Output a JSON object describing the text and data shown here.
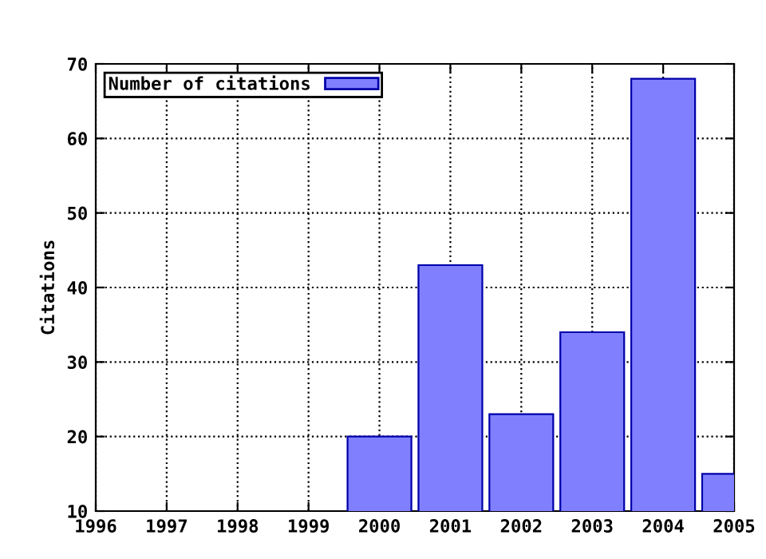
{
  "chart_data": {
    "type": "bar",
    "ylabel": "Citations",
    "x": [
      2000,
      2001,
      2002,
      2003,
      2004,
      2005
    ],
    "series": [
      {
        "name": "Number of citations",
        "color": "#8080ff",
        "values": [
          20,
          43,
          23,
          34,
          68,
          15
        ]
      }
    ],
    "xlim": [
      1996,
      2005
    ],
    "xticks": [
      1996,
      1997,
      1998,
      1999,
      2000,
      2001,
      2002,
      2003,
      2004,
      2005
    ],
    "ylim": [
      10,
      70
    ],
    "yticks": [
      10,
      20,
      30,
      40,
      50,
      60,
      70
    ],
    "grid": true,
    "legend": "top left"
  }
}
